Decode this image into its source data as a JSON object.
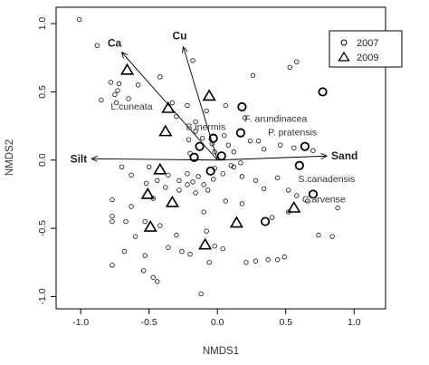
{
  "chart_data": {
    "type": "scatter",
    "xlabel": "NMDS1",
    "ylabel": "NMDS2",
    "xlim": [
      -1.18,
      1.23
    ],
    "ylim": [
      -1.09,
      1.12
    ],
    "xticks": [
      "-1.0",
      "-0.5",
      "0.0",
      "0.5",
      "1.0"
    ],
    "yticks": [
      "-1.0",
      "-0.5",
      "0.0",
      "0.5",
      "1.0"
    ],
    "xtick_values": [
      -1.0,
      -0.5,
      0.0,
      0.5,
      1.0
    ],
    "ytick_values": [
      -1.0,
      -0.5,
      0.0,
      0.5,
      1.0
    ],
    "grid": false,
    "legend": {
      "position": "top-right",
      "entries": [
        "2007",
        "2009"
      ]
    },
    "series": [
      {
        "name": "2007",
        "marker": "circle",
        "points": [
          [
            -1.01,
            1.03
          ],
          [
            -0.88,
            0.84
          ],
          [
            -0.42,
            0.61
          ],
          [
            -0.18,
            0.73
          ],
          [
            0.26,
            0.62
          ],
          [
            0.53,
            0.68
          ],
          [
            0.58,
            0.72
          ],
          [
            1.17,
            0.78
          ],
          [
            -0.78,
            0.57
          ],
          [
            -0.73,
            0.51
          ],
          [
            -0.75,
            0.48
          ],
          [
            -0.65,
            0.45
          ],
          [
            -0.72,
            0.56
          ],
          [
            -0.58,
            0.55
          ],
          [
            -0.85,
            0.44
          ],
          [
            -0.74,
            0.42
          ],
          [
            -0.33,
            0.42
          ],
          [
            -0.22,
            0.4
          ],
          [
            -0.3,
            0.32
          ],
          [
            -0.16,
            0.28
          ],
          [
            -0.08,
            0.36
          ],
          [
            0.06,
            0.4
          ],
          [
            0.2,
            0.31
          ],
          [
            -0.16,
            0.21
          ],
          [
            -0.11,
            0.16
          ],
          [
            -0.04,
            0.12
          ],
          [
            -0.02,
            0.06
          ],
          [
            0.05,
            0.18
          ],
          [
            0.08,
            0.11
          ],
          [
            0.12,
            0.06
          ],
          [
            0.24,
            0.14
          ],
          [
            0.3,
            0.14
          ],
          [
            0.34,
            0.08
          ],
          [
            0.46,
            0.11
          ],
          [
            0.56,
            0.09
          ],
          [
            0.7,
            0.07
          ],
          [
            0.1,
            -0.04
          ],
          [
            0.17,
            -0.02
          ],
          [
            -0.2,
            0.05
          ],
          [
            -0.7,
            -0.05
          ],
          [
            -0.63,
            -0.11
          ],
          [
            -0.52,
            -0.17
          ],
          [
            -0.44,
            -0.15
          ],
          [
            -0.36,
            -0.11
          ],
          [
            -0.28,
            -0.15
          ],
          [
            -0.22,
            -0.18
          ],
          [
            -0.18,
            -0.16
          ],
          [
            -0.14,
            -0.12
          ],
          [
            -0.1,
            -0.18
          ],
          [
            -0.28,
            -0.22
          ],
          [
            -0.16,
            -0.24
          ],
          [
            -0.07,
            -0.22
          ],
          [
            -0.03,
            -0.14
          ],
          [
            0.04,
            -0.1
          ],
          [
            0.18,
            -0.12
          ],
          [
            0.28,
            -0.15
          ],
          [
            0.34,
            -0.21
          ],
          [
            0.44,
            -0.13
          ],
          [
            0.52,
            -0.22
          ],
          [
            0.58,
            -0.26
          ],
          [
            0.66,
            -0.3
          ],
          [
            -0.77,
            -0.29
          ],
          [
            -0.63,
            -0.34
          ],
          [
            -0.47,
            -0.28
          ],
          [
            -0.38,
            -0.2
          ],
          [
            -0.1,
            -0.38
          ],
          [
            0.18,
            -0.32
          ],
          [
            0.52,
            -0.38
          ],
          [
            0.4,
            -0.42
          ],
          [
            -0.77,
            -0.41
          ],
          [
            -0.77,
            -0.45
          ],
          [
            -0.67,
            -0.45
          ],
          [
            -0.53,
            -0.45
          ],
          [
            -0.42,
            -0.48
          ],
          [
            -0.3,
            -0.55
          ],
          [
            -0.08,
            -0.52
          ],
          [
            -0.6,
            -0.56
          ],
          [
            -0.77,
            -0.77
          ],
          [
            -0.53,
            -0.7
          ],
          [
            -0.68,
            -0.67
          ],
          [
            -0.47,
            -0.86
          ],
          [
            -0.26,
            -0.67
          ],
          [
            -0.2,
            -0.69
          ],
          [
            -0.36,
            -0.64
          ],
          [
            -0.02,
            -0.63
          ],
          [
            -0.06,
            -0.75
          ],
          [
            -0.54,
            -0.81
          ],
          [
            0.04,
            -0.65
          ],
          [
            0.21,
            -0.75
          ],
          [
            0.28,
            -0.74
          ],
          [
            0.37,
            -0.73
          ],
          [
            0.44,
            -0.73
          ],
          [
            0.49,
            -0.71
          ],
          [
            0.74,
            -0.55
          ],
          [
            0.84,
            -0.56
          ],
          [
            0.88,
            -0.35
          ],
          [
            -0.12,
            -0.98
          ],
          [
            -0.44,
            -0.89
          ],
          [
            -0.21,
            0.15
          ],
          [
            0.12,
            -0.05
          ],
          [
            -0.02,
            -0.06
          ],
          [
            0.06,
            -0.3
          ],
          [
            -0.22,
            -0.1
          ],
          [
            -0.5,
            -0.05
          ]
        ]
      },
      {
        "name": "2009",
        "marker": "triangle",
        "points": [
          [
            -0.66,
            0.66
          ],
          [
            -0.36,
            0.38
          ],
          [
            -0.06,
            0.47
          ],
          [
            -0.38,
            0.21
          ],
          [
            -0.42,
            -0.07
          ],
          [
            -0.51,
            -0.25
          ],
          [
            -0.33,
            -0.31
          ],
          [
            -0.49,
            -0.49
          ],
          [
            -0.09,
            -0.62
          ],
          [
            0.14,
            -0.46
          ],
          [
            0.56,
            -0.35
          ]
        ]
      },
      {
        "name": "",
        "marker": "bold-circle",
        "points": [
          [
            0.18,
            0.39
          ],
          [
            0.77,
            0.5
          ],
          [
            0.17,
            0.2
          ],
          [
            -0.03,
            0.16
          ],
          [
            -0.13,
            0.1
          ],
          [
            -0.17,
            0.02
          ],
          [
            0.03,
            0.03
          ],
          [
            0.64,
            0.1
          ],
          [
            0.6,
            -0.04
          ],
          [
            -0.05,
            -0.08
          ],
          [
            0.35,
            -0.45
          ],
          [
            0.7,
            -0.25
          ]
        ]
      }
    ],
    "vectors": [
      {
        "label": "Ca",
        "x": -0.7,
        "y": 0.79
      },
      {
        "label": "Cu",
        "x": -0.25,
        "y": 0.83
      },
      {
        "label": "Silt",
        "x": -0.92,
        "y": 0.01
      },
      {
        "label": "Sand",
        "x": 0.8,
        "y": 0.03
      }
    ],
    "species_labels": [
      {
        "label": "L.cuneata",
        "x": -0.78,
        "y": 0.37
      },
      {
        "label": "B.inermis",
        "x": -0.23,
        "y": 0.22
      },
      {
        "label": "F. arundinacea",
        "x": 0.2,
        "y": 0.28
      },
      {
        "label": "P. pratensis",
        "x": 0.37,
        "y": 0.18
      },
      {
        "label": "S.canadensis",
        "x": 0.59,
        "y": -0.16
      },
      {
        "label": "C.arvense",
        "x": 0.62,
        "y": -0.31
      }
    ]
  }
}
